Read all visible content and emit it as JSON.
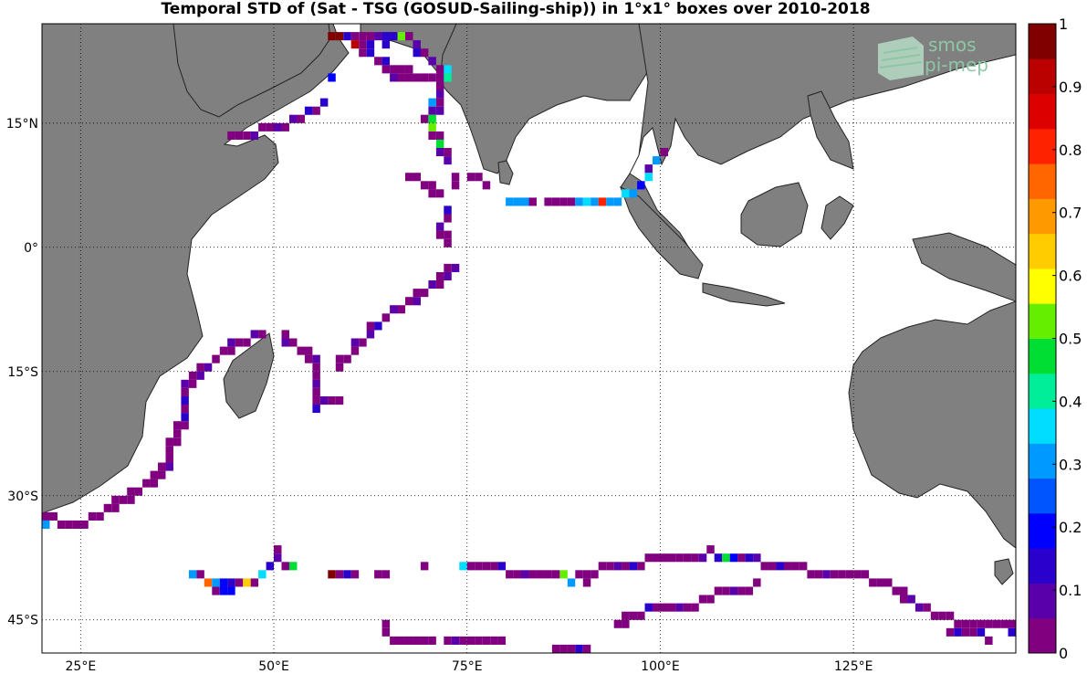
{
  "title": "Temporal STD of (Sat - TSG (GOSUD-Sailing-ship)) in 1°x1° boxes over 2010-2018",
  "logo": {
    "line1": "smos",
    "line2": "pi-mep"
  },
  "map": {
    "lon_range": [
      20,
      146
    ],
    "lat_range": [
      -49,
      27
    ],
    "lon_ticks": [
      {
        "v": 25,
        "label": "25°E"
      },
      {
        "v": 50,
        "label": "50°E"
      },
      {
        "v": 75,
        "label": "75°E"
      },
      {
        "v": 100,
        "label": "100°E"
      },
      {
        "v": 125,
        "label": "125°E"
      }
    ],
    "lat_ticks": [
      {
        "v": 15,
        "label": "15°N"
      },
      {
        "v": 0,
        "label": "0°"
      },
      {
        "v": -15,
        "label": "15°S"
      },
      {
        "v": -30,
        "label": "30°S"
      },
      {
        "v": -45,
        "label": "45°S"
      }
    ],
    "land_color": "#808080",
    "ocean_color": "#ffffff",
    "grid": "dotted"
  },
  "colorbar": {
    "range": [
      0,
      1
    ],
    "ticks": [
      "0",
      "0.1",
      "0.2",
      "0.3",
      "0.4",
      "0.5",
      "0.6",
      "0.7",
      "0.8",
      "0.9",
      "1"
    ],
    "colors": [
      "#800080",
      "#5A00AA",
      "#2A00CC",
      "#0000FF",
      "#0055FF",
      "#0099FF",
      "#00DDFF",
      "#00EE99",
      "#00DD33",
      "#66EE00",
      "#FFFF00",
      "#FFCC00",
      "#FF9900",
      "#FF6600",
      "#FF2200",
      "#DD0000",
      "#BB0000",
      "#800000"
    ]
  },
  "cells": [
    [
      57,
      25,
      0.95
    ],
    [
      58,
      25,
      0.95
    ],
    [
      59,
      25,
      0.15
    ],
    [
      60,
      25,
      0.05
    ],
    [
      61,
      25,
      0.05
    ],
    [
      62,
      25,
      0.05
    ],
    [
      63,
      25,
      0.1
    ],
    [
      64,
      25,
      0.15
    ],
    [
      65,
      25,
      0.15
    ],
    [
      66,
      25,
      0.5
    ],
    [
      67,
      25,
      0.05
    ],
    [
      60,
      24,
      0.9
    ],
    [
      61,
      24,
      0.05
    ],
    [
      62,
      24,
      0.15
    ],
    [
      64,
      24,
      0.15
    ],
    [
      68,
      24,
      0.1
    ],
    [
      61,
      23,
      0.05
    ],
    [
      62,
      23,
      0.15
    ],
    [
      68,
      23,
      0.15
    ],
    [
      69,
      23,
      0.05
    ],
    [
      63,
      22,
      0.05
    ],
    [
      64,
      22,
      0.15
    ],
    [
      70,
      22,
      0.1
    ],
    [
      64,
      21,
      0.05
    ],
    [
      65,
      21,
      0.05
    ],
    [
      66,
      21,
      0.05
    ],
    [
      67,
      21,
      0.05
    ],
    [
      71,
      21,
      0.05
    ],
    [
      72,
      21,
      0.35
    ],
    [
      65,
      20,
      0.1
    ],
    [
      66,
      20,
      0.05
    ],
    [
      67,
      20,
      0.05
    ],
    [
      68,
      20,
      0.05
    ],
    [
      69,
      20,
      0.05
    ],
    [
      70,
      20,
      0.05
    ],
    [
      71,
      20,
      0.05
    ],
    [
      72,
      20,
      0.4
    ],
    [
      57,
      20,
      0.2
    ],
    [
      71,
      19,
      0.05
    ],
    [
      71,
      18,
      0.1
    ],
    [
      70,
      17,
      0.3
    ],
    [
      71,
      17,
      0.05
    ],
    [
      70,
      16,
      0.1
    ],
    [
      71,
      16,
      0.1
    ],
    [
      69,
      15,
      0.05
    ],
    [
      70,
      15,
      0.45
    ],
    [
      70,
      14,
      0.5
    ],
    [
      70,
      13,
      0.05
    ],
    [
      71,
      13,
      0.05
    ],
    [
      71,
      12,
      0.45
    ],
    [
      71,
      11,
      0.1
    ],
    [
      72,
      11,
      0.05
    ],
    [
      72,
      10,
      0.1
    ],
    [
      73,
      8,
      0.05
    ],
    [
      73,
      7,
      0.05
    ],
    [
      72,
      4,
      0.15
    ],
    [
      72,
      3,
      0.05
    ],
    [
      71,
      2,
      0.1
    ],
    [
      71,
      1,
      0.05
    ],
    [
      72,
      1,
      0.05
    ],
    [
      72,
      0,
      0.05
    ],
    [
      56,
      17,
      0.15
    ],
    [
      55,
      16,
      0.05
    ],
    [
      54,
      16,
      0.15
    ],
    [
      53,
      15,
      0.05
    ],
    [
      52,
      15,
      0.1
    ],
    [
      51,
      14,
      0.05
    ],
    [
      50,
      14,
      0.1
    ],
    [
      49,
      14,
      0.05
    ],
    [
      48,
      14,
      0.05
    ],
    [
      47,
      13,
      0.1
    ],
    [
      46,
      13,
      0.05
    ],
    [
      45,
      13,
      0.05
    ],
    [
      44,
      13,
      0.05
    ],
    [
      67,
      8,
      0.05
    ],
    [
      68,
      8,
      0.05
    ],
    [
      69,
      7,
      0.05
    ],
    [
      70,
      7,
      0.05
    ],
    [
      70,
      6,
      0.05
    ],
    [
      71,
      6,
      0.05
    ],
    [
      75,
      8,
      0.05
    ],
    [
      76,
      8,
      0.05
    ],
    [
      77,
      7,
      0.05
    ],
    [
      80,
      5,
      0.3
    ],
    [
      81,
      5,
      0.3
    ],
    [
      82,
      5,
      0.3
    ],
    [
      83,
      5,
      0.05
    ],
    [
      85,
      5,
      0.05
    ],
    [
      86,
      5,
      0.05
    ],
    [
      87,
      5,
      0.05
    ],
    [
      88,
      5,
      0.05
    ],
    [
      89,
      5,
      0.3
    ],
    [
      90,
      5,
      0.35
    ],
    [
      91,
      5,
      0.3
    ],
    [
      92,
      5,
      0.8
    ],
    [
      93,
      5,
      0.3
    ],
    [
      94,
      5,
      0.3
    ],
    [
      95,
      6,
      0.35
    ],
    [
      96,
      6,
      0.3
    ],
    [
      97,
      7,
      0.2
    ],
    [
      98,
      8,
      0.35
    ],
    [
      98,
      9,
      0.1
    ],
    [
      99,
      10,
      0.3
    ],
    [
      100,
      11,
      0.05
    ],
    [
      73,
      -3,
      0.1
    ],
    [
      72,
      -3,
      0.05
    ],
    [
      72,
      -4,
      0.1
    ],
    [
      71,
      -4,
      0.05
    ],
    [
      71,
      -5,
      0.05
    ],
    [
      70,
      -5,
      0.1
    ],
    [
      69,
      -6,
      0.05
    ],
    [
      68,
      -6,
      0.05
    ],
    [
      68,
      -7,
      0.1
    ],
    [
      67,
      -7,
      0.05
    ],
    [
      66,
      -8,
      0.05
    ],
    [
      65,
      -8,
      0.1
    ],
    [
      64,
      -9,
      0.05
    ],
    [
      63,
      -10,
      0.15
    ],
    [
      62,
      -10,
      0.05
    ],
    [
      62,
      -11,
      0.1
    ],
    [
      61,
      -12,
      0.05
    ],
    [
      60,
      -12,
      0.1
    ],
    [
      60,
      -13,
      0.05
    ],
    [
      59,
      -14,
      0.05
    ],
    [
      58,
      -14,
      0.05
    ],
    [
      58,
      -15,
      0.05
    ],
    [
      48,
      -11,
      0.05
    ],
    [
      47,
      -11,
      0.1
    ],
    [
      46,
      -12,
      0.05
    ],
    [
      45,
      -12,
      0.05
    ],
    [
      44,
      -12,
      0.1
    ],
    [
      44,
      -13,
      0.05
    ],
    [
      43,
      -13,
      0.05
    ],
    [
      42,
      -14,
      0.05
    ],
    [
      41,
      -15,
      0.1
    ],
    [
      40,
      -15,
      0.05
    ],
    [
      40,
      -16,
      0.1
    ],
    [
      39,
      -16,
      0.05
    ],
    [
      39,
      -17,
      0.05
    ],
    [
      38,
      -17,
      0.1
    ],
    [
      38,
      -18,
      0.05
    ],
    [
      38,
      -19,
      0.15
    ],
    [
      38,
      -20,
      0.05
    ],
    [
      38,
      -21,
      0.15
    ],
    [
      38,
      -22,
      0.05
    ],
    [
      37,
      -22,
      0.05
    ],
    [
      37,
      -23,
      0.05
    ],
    [
      37,
      -24,
      0.05
    ],
    [
      36,
      -24,
      0.05
    ],
    [
      36,
      -25,
      0.05
    ],
    [
      36,
      -26,
      0.05
    ],
    [
      36,
      -27,
      0.1
    ],
    [
      35,
      -27,
      0.05
    ],
    [
      35,
      -28,
      0.05
    ],
    [
      34,
      -28,
      0.05
    ],
    [
      34,
      -29,
      0.05
    ],
    [
      33,
      -29,
      0.05
    ],
    [
      32,
      -30,
      0.05
    ],
    [
      31,
      -30,
      0.05
    ],
    [
      31,
      -31,
      0.05
    ],
    [
      30,
      -31,
      0.05
    ],
    [
      29,
      -31,
      0.05
    ],
    [
      29,
      -32,
      0.05
    ],
    [
      28,
      -32,
      0.05
    ],
    [
      27,
      -33,
      0.05
    ],
    [
      26,
      -33,
      0.05
    ],
    [
      25,
      -34,
      0.05
    ],
    [
      24,
      -34,
      0.05
    ],
    [
      23,
      -34,
      0.05
    ],
    [
      22,
      -34,
      0.05
    ],
    [
      21,
      -33,
      0.05
    ],
    [
      20,
      -33,
      0.05
    ],
    [
      20,
      -34,
      0.3
    ],
    [
      51,
      -11,
      0.05
    ],
    [
      51,
      -12,
      0.1
    ],
    [
      52,
      -12,
      0.05
    ],
    [
      53,
      -13,
      0.05
    ],
    [
      54,
      -13,
      0.05
    ],
    [
      54,
      -14,
      0.05
    ],
    [
      55,
      -14,
      0.1
    ],
    [
      55,
      -15,
      0.05
    ],
    [
      55,
      -16,
      0.05
    ],
    [
      55,
      -17,
      0.1
    ],
    [
      55,
      -18,
      0.05
    ],
    [
      55,
      -19,
      0.05
    ],
    [
      55,
      -20,
      0.15
    ],
    [
      56,
      -19,
      0.1
    ],
    [
      57,
      -19,
      0.05
    ],
    [
      58,
      -19,
      0.05
    ],
    [
      50,
      -37,
      0.05
    ],
    [
      50,
      -38,
      0.1
    ],
    [
      49,
      -39,
      0.15
    ],
    [
      51,
      -39,
      0.05
    ],
    [
      52,
      -39,
      0.45
    ],
    [
      48,
      -40,
      0.35
    ],
    [
      39,
      -40,
      0.3
    ],
    [
      40,
      -40,
      0.05
    ],
    [
      47,
      -41,
      0.05
    ],
    [
      46,
      -41,
      0.65
    ],
    [
      41,
      -41,
      0.75
    ],
    [
      42,
      -41,
      0.3
    ],
    [
      43,
      -41,
      0.2
    ],
    [
      44,
      -41,
      0.15
    ],
    [
      45,
      -41,
      0.05
    ],
    [
      42,
      -42,
      0.05
    ],
    [
      43,
      -42,
      0.2
    ],
    [
      44,
      -42,
      0.2
    ],
    [
      57,
      -40,
      0.95
    ],
    [
      58,
      -40,
      0.05
    ],
    [
      59,
      -40,
      0.15
    ],
    [
      60,
      -40,
      0.05
    ],
    [
      63,
      -40,
      0.05
    ],
    [
      64,
      -40,
      0.05
    ],
    [
      69,
      -39,
      0.05
    ],
    [
      74,
      -39,
      0.35
    ],
    [
      75,
      -39,
      0.05
    ],
    [
      76,
      -39,
      0.05
    ],
    [
      77,
      -39,
      0.05
    ],
    [
      78,
      -39,
      0.05
    ],
    [
      79,
      -39,
      0.15
    ],
    [
      80,
      -40,
      0.05
    ],
    [
      81,
      -40,
      0.05
    ],
    [
      82,
      -40,
      0.1
    ],
    [
      83,
      -40,
      0.05
    ],
    [
      84,
      -40,
      0.05
    ],
    [
      85,
      -40,
      0.05
    ],
    [
      86,
      -40,
      0.05
    ],
    [
      87,
      -40,
      0.5
    ],
    [
      88,
      -41,
      0.3
    ],
    [
      89,
      -40,
      0.05
    ],
    [
      90,
      -40,
      0.05
    ],
    [
      90,
      -41,
      0.05
    ],
    [
      91,
      -40,
      0.05
    ],
    [
      92,
      -39,
      0.05
    ],
    [
      93,
      -39,
      0.05
    ],
    [
      94,
      -39,
      0.1
    ],
    [
      95,
      -39,
      0.05
    ],
    [
      96,
      -39,
      0.15
    ],
    [
      97,
      -39,
      0.05
    ],
    [
      98,
      -38,
      0.05
    ],
    [
      99,
      -38,
      0.05
    ],
    [
      100,
      -38,
      0.05
    ],
    [
      101,
      -38,
      0.05
    ],
    [
      102,
      -38,
      0.05
    ],
    [
      103,
      -38,
      0.05
    ],
    [
      104,
      -38,
      0.05
    ],
    [
      105,
      -38,
      0.1
    ],
    [
      106,
      -37,
      0.05
    ],
    [
      107,
      -38,
      0.15
    ],
    [
      108,
      -38,
      0.45
    ],
    [
      109,
      -38,
      0.2
    ],
    [
      110,
      -38,
      0.05
    ],
    [
      111,
      -38,
      0.15
    ],
    [
      112,
      -38,
      0.1
    ],
    [
      113,
      -39,
      0.05
    ],
    [
      114,
      -39,
      0.05
    ],
    [
      115,
      -39,
      0.15
    ],
    [
      116,
      -39,
      0.05
    ],
    [
      117,
      -39,
      0.05
    ],
    [
      118,
      -39,
      0.05
    ],
    [
      119,
      -40,
      0.05
    ],
    [
      120,
      -40,
      0.05
    ],
    [
      121,
      -40,
      0.1
    ],
    [
      122,
      -40,
      0.05
    ],
    [
      123,
      -40,
      0.05
    ],
    [
      124,
      -40,
      0.05
    ],
    [
      125,
      -40,
      0.05
    ],
    [
      126,
      -40,
      0.05
    ],
    [
      127,
      -41,
      0.05
    ],
    [
      128,
      -41,
      0.05
    ],
    [
      129,
      -41,
      0.05
    ],
    [
      130,
      -42,
      0.05
    ],
    [
      131,
      -42,
      0.05
    ],
    [
      131,
      -43,
      0.05
    ],
    [
      132,
      -43,
      0.1
    ],
    [
      133,
      -44,
      0.1
    ],
    [
      134,
      -44,
      0.05
    ],
    [
      135,
      -45,
      0.05
    ],
    [
      136,
      -45,
      0.05
    ],
    [
      137,
      -45,
      0.05
    ],
    [
      138,
      -46,
      0.05
    ],
    [
      139,
      -46,
      0.05
    ],
    [
      140,
      -46,
      0.05
    ],
    [
      141,
      -46,
      0.05
    ],
    [
      142,
      -46,
      0.05
    ],
    [
      143,
      -46,
      0.05
    ],
    [
      144,
      -46,
      0.05
    ],
    [
      145,
      -46,
      0.05
    ],
    [
      137,
      -47,
      0.05
    ],
    [
      138,
      -47,
      0.15
    ],
    [
      139,
      -47,
      0.05
    ],
    [
      140,
      -47,
      0.05
    ],
    [
      141,
      -47,
      0.15
    ],
    [
      142,
      -48,
      0.05
    ],
    [
      145,
      -47,
      0.15
    ],
    [
      112,
      -41,
      0.05
    ],
    [
      111,
      -42,
      0.05
    ],
    [
      110,
      -42,
      0.05
    ],
    [
      109,
      -42,
      0.1
    ],
    [
      108,
      -42,
      0.05
    ],
    [
      107,
      -42,
      0.05
    ],
    [
      106,
      -43,
      0.05
    ],
    [
      105,
      -43,
      0.05
    ],
    [
      104,
      -44,
      0.05
    ],
    [
      103,
      -44,
      0.05
    ],
    [
      102,
      -44,
      0.1
    ],
    [
      101,
      -44,
      0.05
    ],
    [
      100,
      -44,
      0.05
    ],
    [
      99,
      -44,
      0.05
    ],
    [
      98,
      -44,
      0.15
    ],
    [
      97,
      -45,
      0.05
    ],
    [
      96,
      -45,
      0.05
    ],
    [
      95,
      -45,
      0.05
    ],
    [
      94,
      -46,
      0.05
    ],
    [
      95,
      -46,
      0.05
    ],
    [
      64,
      -46,
      0.05
    ],
    [
      64,
      -47,
      0.05
    ],
    [
      65,
      -48,
      0.05
    ],
    [
      66,
      -48,
      0.05
    ],
    [
      67,
      -48,
      0.05
    ],
    [
      68,
      -48,
      0.05
    ],
    [
      69,
      -48,
      0.05
    ],
    [
      70,
      -48,
      0.05
    ],
    [
      72,
      -48,
      0.05
    ],
    [
      73,
      -48,
      0.1
    ],
    [
      74,
      -48,
      0.05
    ],
    [
      75,
      -48,
      0.05
    ],
    [
      76,
      -48,
      0.05
    ],
    [
      77,
      -48,
      0.05
    ],
    [
      78,
      -48,
      0.05
    ],
    [
      79,
      -48,
      0.05
    ],
    [
      86,
      -49,
      0.05
    ],
    [
      87,
      -49,
      0.05
    ],
    [
      88,
      -49,
      0.05
    ],
    [
      89,
      -49,
      0.15
    ],
    [
      90,
      -49,
      0.05
    ]
  ]
}
